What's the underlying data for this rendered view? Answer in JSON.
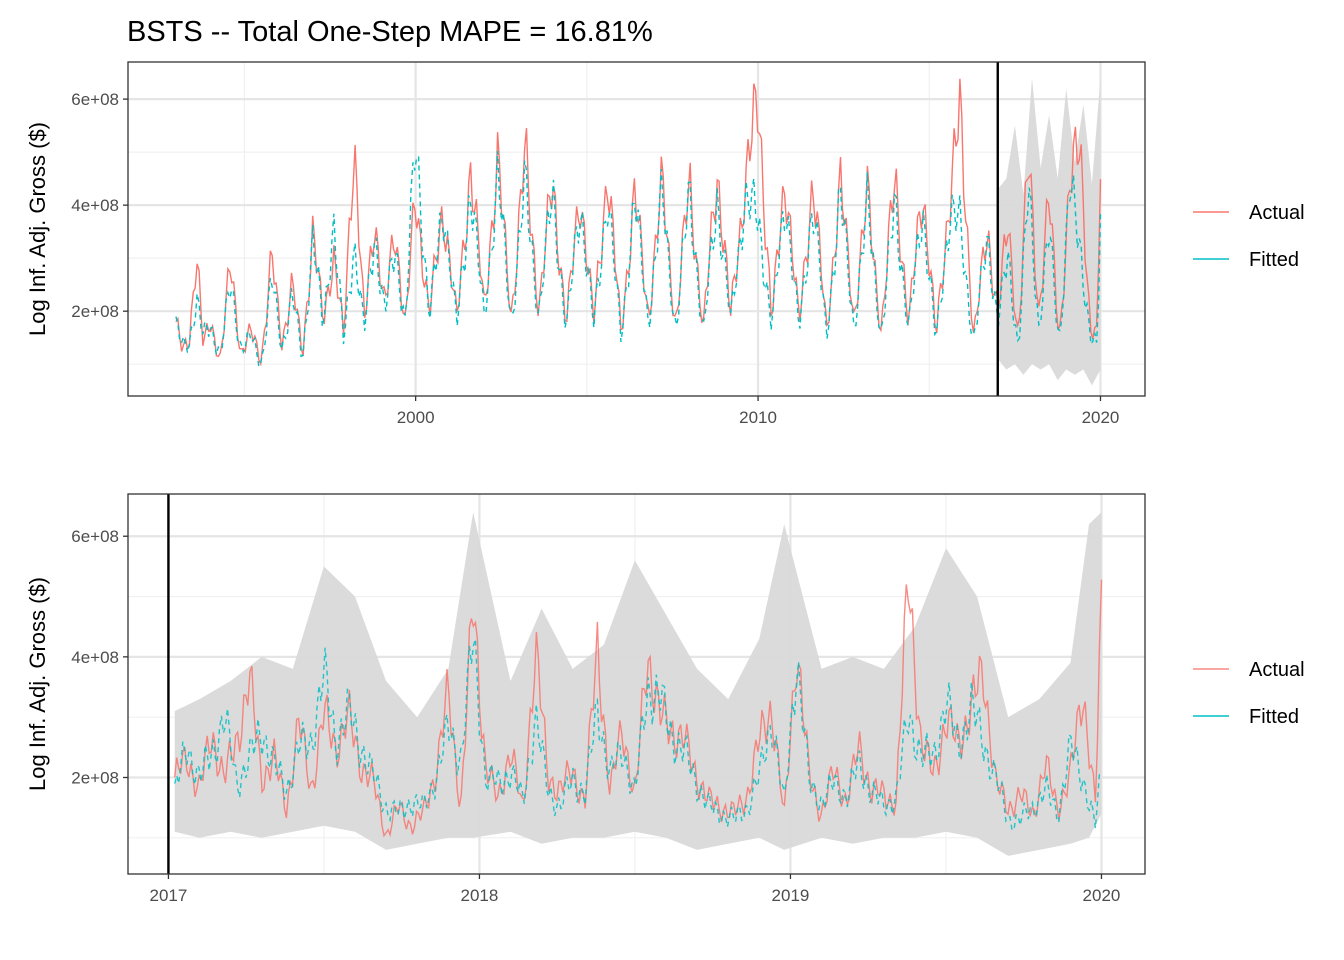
{
  "title": "BSTS -- Total One-Step MAPE = 16.81%",
  "colors": {
    "actual": "#f8766d",
    "fitted": "#00bfc4",
    "ribbon": "#d9d9d9",
    "grid_major": "#e5e5e5",
    "grid_minor": "#f0f0f0",
    "panel_border": "#333333",
    "vline": "#000000"
  },
  "chart_data": [
    {
      "type": "line",
      "panel": "top",
      "ylabel": "Log Inf. Adj. Gross ($)",
      "xlabel": "",
      "x_ticks": [
        "2000",
        "2010",
        "2020"
      ],
      "x_tick_values": [
        2000,
        2010,
        2020
      ],
      "y_ticks": [
        "2e+08",
        "4e+08",
        "6e+08"
      ],
      "y_tick_values": [
        200000000,
        400000000,
        600000000
      ],
      "xlim": [
        1991.6,
        2021.3
      ],
      "ylim": [
        40000000,
        670000000
      ],
      "vline": 2017.0,
      "ribbon_range": [
        2017.0,
        2020.0
      ],
      "grid": true,
      "legend": "right",
      "legend_entries": [
        "Actual",
        "Fitted"
      ],
      "series": [
        {
          "name": "Actual",
          "linetype": "solid",
          "color": "#f8766d",
          "x": [
            1993.0,
            1993.2,
            1993.4,
            1993.6,
            1993.8,
            1994.0,
            1994.3,
            1994.6,
            1994.9,
            1995.2,
            1995.5,
            1995.8,
            1996.1,
            1996.4,
            1996.7,
            1997.0,
            1997.3,
            1997.6,
            1997.9,
            1998.2,
            1998.5,
            1998.8,
            1999.1,
            1999.4,
            1999.7,
            2000.0,
            2000.4,
            2000.8,
            2001.2,
            2001.6,
            2002.0,
            2002.4,
            2002.8,
            2003.2,
            2003.6,
            2004.0,
            2004.4,
            2004.8,
            2005.2,
            2005.6,
            2006.0,
            2006.4,
            2006.8,
            2007.2,
            2007.6,
            2008.0,
            2008.4,
            2008.8,
            2009.2,
            2009.6,
            2010.0,
            2010.4,
            2010.8,
            2011.2,
            2011.6,
            2012.0,
            2012.4,
            2012.8,
            2013.2,
            2013.6,
            2014.0,
            2014.4,
            2014.8,
            2015.2,
            2015.6,
            2015.9,
            2016.3,
            2016.7,
            2017.0,
            2017.3,
            2017.6,
            2017.9,
            2018.2,
            2018.5,
            2018.8,
            2019.1,
            2019.4,
            2019.7,
            2019.9,
            2020.0
          ],
          "y": [
            180000000,
            120000000,
            150000000,
            320000000,
            130000000,
            180000000,
            110000000,
            290000000,
            120000000,
            160000000,
            110000000,
            300000000,
            140000000,
            250000000,
            120000000,
            350000000,
            180000000,
            310000000,
            150000000,
            530000000,
            170000000,
            380000000,
            200000000,
            360000000,
            170000000,
            420000000,
            190000000,
            400000000,
            180000000,
            470000000,
            210000000,
            480000000,
            190000000,
            500000000,
            200000000,
            450000000,
            170000000,
            430000000,
            180000000,
            460000000,
            160000000,
            420000000,
            190000000,
            440000000,
            170000000,
            450000000,
            160000000,
            470000000,
            190000000,
            430000000,
            600000000,
            180000000,
            460000000,
            170000000,
            450000000,
            160000000,
            440000000,
            190000000,
            420000000,
            160000000,
            460000000,
            170000000,
            440000000,
            150000000,
            420000000,
            570000000,
            150000000,
            350000000,
            200000000,
            360000000,
            150000000,
            490000000,
            200000000,
            410000000,
            150000000,
            420000000,
            540000000,
            160000000,
            150000000,
            485000000
          ]
        },
        {
          "name": "Fitted",
          "linetype": "dashed",
          "color": "#00bfc4",
          "x": [
            1993.0,
            1993.2,
            1993.4,
            1993.6,
            1993.8,
            1994.0,
            1994.3,
            1994.6,
            1994.9,
            1995.2,
            1995.5,
            1995.8,
            1996.1,
            1996.4,
            1996.7,
            1997.0,
            1997.3,
            1997.6,
            1997.9,
            1998.2,
            1998.5,
            1998.8,
            1999.1,
            1999.4,
            1999.7,
            2000.0,
            2000.4,
            2000.8,
            2001.2,
            2001.6,
            2002.0,
            2002.4,
            2002.8,
            2003.2,
            2003.6,
            2004.0,
            2004.4,
            2004.8,
            2005.2,
            2005.6,
            2006.0,
            2006.4,
            2006.8,
            2007.2,
            2007.6,
            2008.0,
            2008.4,
            2008.8,
            2009.2,
            2009.6,
            2010.0,
            2010.4,
            2010.8,
            2011.2,
            2011.6,
            2012.0,
            2012.4,
            2012.8,
            2013.2,
            2013.6,
            2014.0,
            2014.4,
            2014.8,
            2015.2,
            2015.6,
            2015.9,
            2016.3,
            2016.7,
            2017.0,
            2017.3,
            2017.6,
            2017.9,
            2018.2,
            2018.5,
            2018.8,
            2019.1,
            2019.4,
            2019.7,
            2019.9,
            2020.0
          ],
          "y": [
            175000000,
            130000000,
            140000000,
            230000000,
            150000000,
            170000000,
            120000000,
            250000000,
            130000000,
            150000000,
            100000000,
            260000000,
            130000000,
            230000000,
            110000000,
            340000000,
            170000000,
            370000000,
            140000000,
            330000000,
            160000000,
            350000000,
            190000000,
            330000000,
            170000000,
            540000000,
            180000000,
            410000000,
            170000000,
            430000000,
            190000000,
            450000000,
            180000000,
            440000000,
            190000000,
            430000000,
            160000000,
            410000000,
            170000000,
            420000000,
            150000000,
            410000000,
            180000000,
            420000000,
            160000000,
            430000000,
            150000000,
            420000000,
            180000000,
            410000000,
            380000000,
            170000000,
            420000000,
            160000000,
            410000000,
            150000000,
            420000000,
            170000000,
            400000000,
            150000000,
            410000000,
            160000000,
            400000000,
            140000000,
            390000000,
            360000000,
            140000000,
            340000000,
            180000000,
            300000000,
            130000000,
            430000000,
            170000000,
            350000000,
            140000000,
            430000000,
            330000000,
            150000000,
            130000000,
            380000000
          ]
        }
      ],
      "ribbon": {
        "x": [
          2017.0,
          2017.25,
          2017.5,
          2017.75,
          2018.0,
          2018.25,
          2018.5,
          2018.75,
          2019.0,
          2019.25,
          2019.5,
          2019.75,
          2020.0
        ],
        "lower": [
          110000000,
          90000000,
          100000000,
          80000000,
          100000000,
          90000000,
          100000000,
          70000000,
          90000000,
          80000000,
          90000000,
          60000000,
          90000000
        ],
        "upper": [
          430000000,
          450000000,
          550000000,
          420000000,
          640000000,
          470000000,
          570000000,
          450000000,
          620000000,
          480000000,
          590000000,
          440000000,
          640000000
        ]
      }
    },
    {
      "type": "line",
      "panel": "bottom",
      "ylabel": "Log Inf. Adj. Gross ($)",
      "xlabel": "",
      "x_ticks": [
        "2017",
        "2018",
        "2019",
        "2020"
      ],
      "x_tick_values": [
        2017,
        2018,
        2019,
        2020
      ],
      "y_ticks": [
        "2e+08",
        "4e+08",
        "6e+08"
      ],
      "y_tick_values": [
        200000000,
        400000000,
        600000000
      ],
      "xlim": [
        2016.87,
        2020.14
      ],
      "ylim": [
        40000000,
        670000000
      ],
      "vline": 2017.0,
      "grid": true,
      "legend": "right",
      "legend_entries": [
        "Actual",
        "Fitted"
      ],
      "series": [
        {
          "name": "Actual",
          "linetype": "solid",
          "color": "#f8766d",
          "x": [
            2017.02,
            2017.06,
            2017.1,
            2017.14,
            2017.18,
            2017.22,
            2017.26,
            2017.3,
            2017.34,
            2017.38,
            2017.42,
            2017.46,
            2017.5,
            2017.54,
            2017.58,
            2017.62,
            2017.66,
            2017.7,
            2017.74,
            2017.78,
            2017.82,
            2017.86,
            2017.9,
            2017.94,
            2017.98,
            2018.02,
            2018.06,
            2018.1,
            2018.14,
            2018.18,
            2018.22,
            2018.26,
            2018.3,
            2018.34,
            2018.38,
            2018.42,
            2018.46,
            2018.5,
            2018.54,
            2018.58,
            2018.62,
            2018.66,
            2018.7,
            2018.74,
            2018.78,
            2018.82,
            2018.86,
            2018.9,
            2018.94,
            2018.98,
            2019.02,
            2019.06,
            2019.1,
            2019.14,
            2019.18,
            2019.22,
            2019.26,
            2019.3,
            2019.34,
            2019.38,
            2019.42,
            2019.46,
            2019.5,
            2019.54,
            2019.58,
            2019.62,
            2019.66,
            2019.7,
            2019.74,
            2019.78,
            2019.82,
            2019.86,
            2019.9,
            2019.94,
            2019.98,
            2020.0
          ],
          "y": [
            200000000,
            230000000,
            180000000,
            270000000,
            200000000,
            260000000,
            365000000,
            200000000,
            230000000,
            150000000,
            290000000,
            180000000,
            305000000,
            250000000,
            300000000,
            220000000,
            190000000,
            105000000,
            150000000,
            120000000,
            140000000,
            210000000,
            340000000,
            150000000,
            490000000,
            220000000,
            160000000,
            250000000,
            140000000,
            420000000,
            200000000,
            180000000,
            210000000,
            160000000,
            425000000,
            170000000,
            290000000,
            160000000,
            410000000,
            300000000,
            280000000,
            260000000,
            200000000,
            160000000,
            150000000,
            140000000,
            170000000,
            260000000,
            320000000,
            130000000,
            420000000,
            200000000,
            140000000,
            210000000,
            160000000,
            250000000,
            180000000,
            170000000,
            160000000,
            540000000,
            250000000,
            210000000,
            290000000,
            260000000,
            310000000,
            380000000,
            190000000,
            150000000,
            170000000,
            140000000,
            220000000,
            150000000,
            200000000,
            350000000,
            150000000,
            485000000
          ]
        },
        {
          "name": "Fitted",
          "linetype": "dashed",
          "color": "#00bfc4",
          "x": [
            2017.02,
            2017.06,
            2017.1,
            2017.14,
            2017.18,
            2017.22,
            2017.26,
            2017.3,
            2017.34,
            2017.38,
            2017.42,
            2017.46,
            2017.5,
            2017.54,
            2017.58,
            2017.62,
            2017.66,
            2017.7,
            2017.74,
            2017.78,
            2017.82,
            2017.86,
            2017.9,
            2017.94,
            2017.98,
            2018.02,
            2018.06,
            2018.1,
            2018.14,
            2018.18,
            2018.22,
            2018.26,
            2018.3,
            2018.34,
            2018.38,
            2018.42,
            2018.46,
            2018.5,
            2018.54,
            2018.58,
            2018.62,
            2018.66,
            2018.7,
            2018.74,
            2018.78,
            2018.82,
            2018.86,
            2018.9,
            2018.94,
            2018.98,
            2019.02,
            2019.06,
            2019.1,
            2019.14,
            2019.18,
            2019.22,
            2019.26,
            2019.3,
            2019.34,
            2019.38,
            2019.42,
            2019.46,
            2019.5,
            2019.54,
            2019.58,
            2019.62,
            2019.66,
            2019.7,
            2019.74,
            2019.78,
            2019.82,
            2019.86,
            2019.9,
            2019.94,
            2019.98,
            2020.0
          ],
          "y": [
            175000000,
            250000000,
            200000000,
            240000000,
            300000000,
            190000000,
            230000000,
            280000000,
            220000000,
            180000000,
            250000000,
            260000000,
            370000000,
            260000000,
            310000000,
            250000000,
            200000000,
            150000000,
            140000000,
            160000000,
            150000000,
            200000000,
            280000000,
            230000000,
            430000000,
            200000000,
            190000000,
            210000000,
            160000000,
            300000000,
            180000000,
            150000000,
            200000000,
            170000000,
            320000000,
            200000000,
            250000000,
            170000000,
            350000000,
            330000000,
            270000000,
            240000000,
            190000000,
            150000000,
            140000000,
            130000000,
            150000000,
            200000000,
            300000000,
            150000000,
            400000000,
            190000000,
            160000000,
            190000000,
            170000000,
            220000000,
            180000000,
            150000000,
            170000000,
            300000000,
            240000000,
            230000000,
            330000000,
            250000000,
            320000000,
            260000000,
            200000000,
            130000000,
            130000000,
            150000000,
            180000000,
            140000000,
            250000000,
            200000000,
            120000000,
            210000000
          ]
        }
      ],
      "ribbon": {
        "x": [
          2017.02,
          2017.1,
          2017.2,
          2017.3,
          2017.4,
          2017.5,
          2017.6,
          2017.7,
          2017.8,
          2017.9,
          2017.98,
          2018.1,
          2018.2,
          2018.3,
          2018.4,
          2018.5,
          2018.6,
          2018.7,
          2018.8,
          2018.9,
          2018.98,
          2019.1,
          2019.2,
          2019.3,
          2019.4,
          2019.5,
          2019.6,
          2019.7,
          2019.8,
          2019.9,
          2019.96,
          2020.0
        ],
        "lower": [
          110000000,
          100000000,
          110000000,
          100000000,
          110000000,
          120000000,
          110000000,
          80000000,
          90000000,
          100000000,
          100000000,
          110000000,
          90000000,
          100000000,
          100000000,
          110000000,
          100000000,
          80000000,
          90000000,
          100000000,
          80000000,
          100000000,
          90000000,
          100000000,
          100000000,
          110000000,
          100000000,
          70000000,
          80000000,
          90000000,
          100000000,
          140000000
        ],
        "upper": [
          310000000,
          330000000,
          360000000,
          400000000,
          380000000,
          550000000,
          500000000,
          360000000,
          300000000,
          380000000,
          640000000,
          360000000,
          480000000,
          380000000,
          420000000,
          560000000,
          470000000,
          380000000,
          330000000,
          430000000,
          620000000,
          380000000,
          400000000,
          380000000,
          450000000,
          580000000,
          500000000,
          300000000,
          330000000,
          390000000,
          620000000,
          640000000
        ]
      }
    }
  ]
}
